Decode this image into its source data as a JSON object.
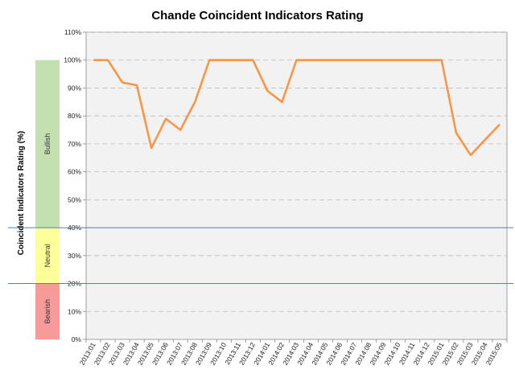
{
  "chart_data": {
    "type": "line",
    "title": "Chande Coincident Indicators Rating",
    "ylabel": "Coincident Indicators Rating (%)",
    "xlabel": "",
    "ylim": [
      0,
      110
    ],
    "yticks": [
      "0%",
      "10%",
      "20%",
      "30%",
      "40%",
      "50%",
      "60%",
      "70%",
      "80%",
      "90%",
      "100%",
      "110%"
    ],
    "grid": "horizontal-dashed",
    "background": "#f2f2f2",
    "categories": [
      "2013:01",
      "2013:02",
      "2013:03",
      "2013:04",
      "2013:05",
      "2013:06",
      "2013:07",
      "2013:08",
      "2013:09",
      "2013:10",
      "2013:11",
      "2013:12",
      "2014:01",
      "2014:02",
      "2014:03",
      "2014:04",
      "2014:05",
      "2014:06",
      "2014:07",
      "2014:08",
      "2014:09",
      "2014:10",
      "2014:11",
      "2014:12",
      "2015:01",
      "2015:02",
      "2015:03",
      "2015:04",
      "2015:05"
    ],
    "series": [
      {
        "color": "#f79646",
        "values": [
          100,
          100,
          92,
          91,
          68.5,
          79,
          75,
          85,
          100,
          100,
          100,
          100,
          89,
          85,
          100,
          100,
          100,
          100,
          100,
          100,
          100,
          100,
          100,
          100,
          100,
          74,
          66,
          71.5,
          77
        ]
      }
    ],
    "thresholds": [
      {
        "value": 40,
        "color": "#4f81bd"
      },
      {
        "value": 20,
        "color": "#4f81bd"
      }
    ],
    "zones": [
      {
        "label": "Bullish",
        "from": 40,
        "to": 100,
        "color": "#c4dfb0"
      },
      {
        "label": "Neutral",
        "from": 20,
        "to": 40,
        "color": "#ffff99"
      },
      {
        "label": "Bearish",
        "from": 0,
        "to": 20,
        "color": "#f79a9a"
      }
    ]
  }
}
